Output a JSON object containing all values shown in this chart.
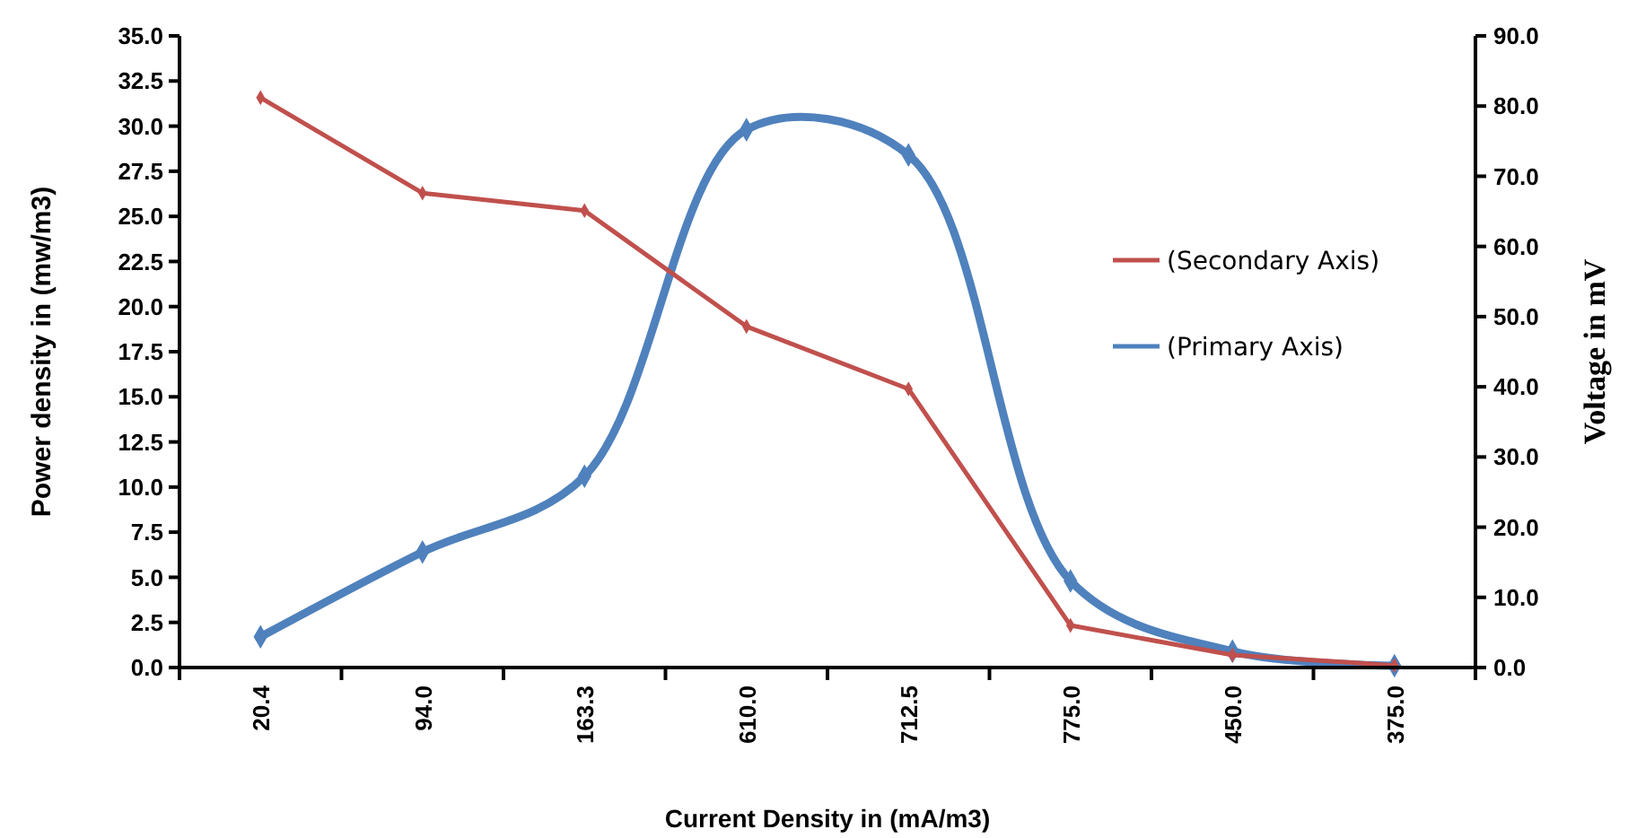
{
  "chart_data": {
    "type": "line",
    "xlabel": "Current Density in (mA/m3)",
    "ylabel": "Power density in (mw/m3)",
    "y2label": "Voltage in mV",
    "categories": [
      "20.4",
      "94.0",
      "163.3",
      "610.0",
      "712.5",
      "775.0",
      "450.0",
      "375.0"
    ],
    "series": [
      {
        "name": "(Secondary Axis)",
        "color": "#c0504d",
        "axis": "y2",
        "values": [
          81.2,
          67.6,
          65.1,
          48.6,
          39.7,
          6.0,
          1.8,
          0.3
        ]
      },
      {
        "name": "(Primary Axis)",
        "color": "#4f81bd",
        "values": [
          1.7,
          6.4,
          10.6,
          29.8,
          28.4,
          4.8,
          0.9,
          0.1
        ]
      }
    ],
    "ylim": [
      0,
      35
    ],
    "yticks": [
      {
        "value": 0,
        "label": "0.0"
      },
      2.5,
      {
        "value": 5,
        "label": "5.0"
      },
      7.5,
      {
        "value": 10,
        "label": "10.0"
      },
      12.5,
      {
        "value": 15,
        "label": "15.0"
      },
      17.5,
      {
        "value": 20,
        "label": "20.0"
      },
      22.5,
      {
        "value": 25,
        "label": "25.0"
      },
      27.5,
      {
        "value": 30,
        "label": "30.0"
      },
      32.5,
      {
        "value": 35,
        "label": "35.0"
      }
    ],
    "y2lim": [
      0,
      90
    ],
    "y2ticks": [
      {
        "value": 0,
        "label": "0.0"
      },
      {
        "value": 10,
        "label": "10.0"
      },
      {
        "value": 20,
        "label": "20.0"
      },
      {
        "value": 30,
        "label": "30.0"
      },
      {
        "value": 40,
        "label": "40.0"
      },
      {
        "value": 50,
        "label": "50.0"
      },
      {
        "value": 60,
        "label": "60.0"
      },
      {
        "value": 70,
        "label": "70.0"
      },
      {
        "value": 80,
        "label": "80.0"
      },
      {
        "value": 90,
        "label": "90.0"
      }
    ],
    "grid": false,
    "legend": "right",
    "marker": "diamond",
    "line_style": "solid"
  }
}
